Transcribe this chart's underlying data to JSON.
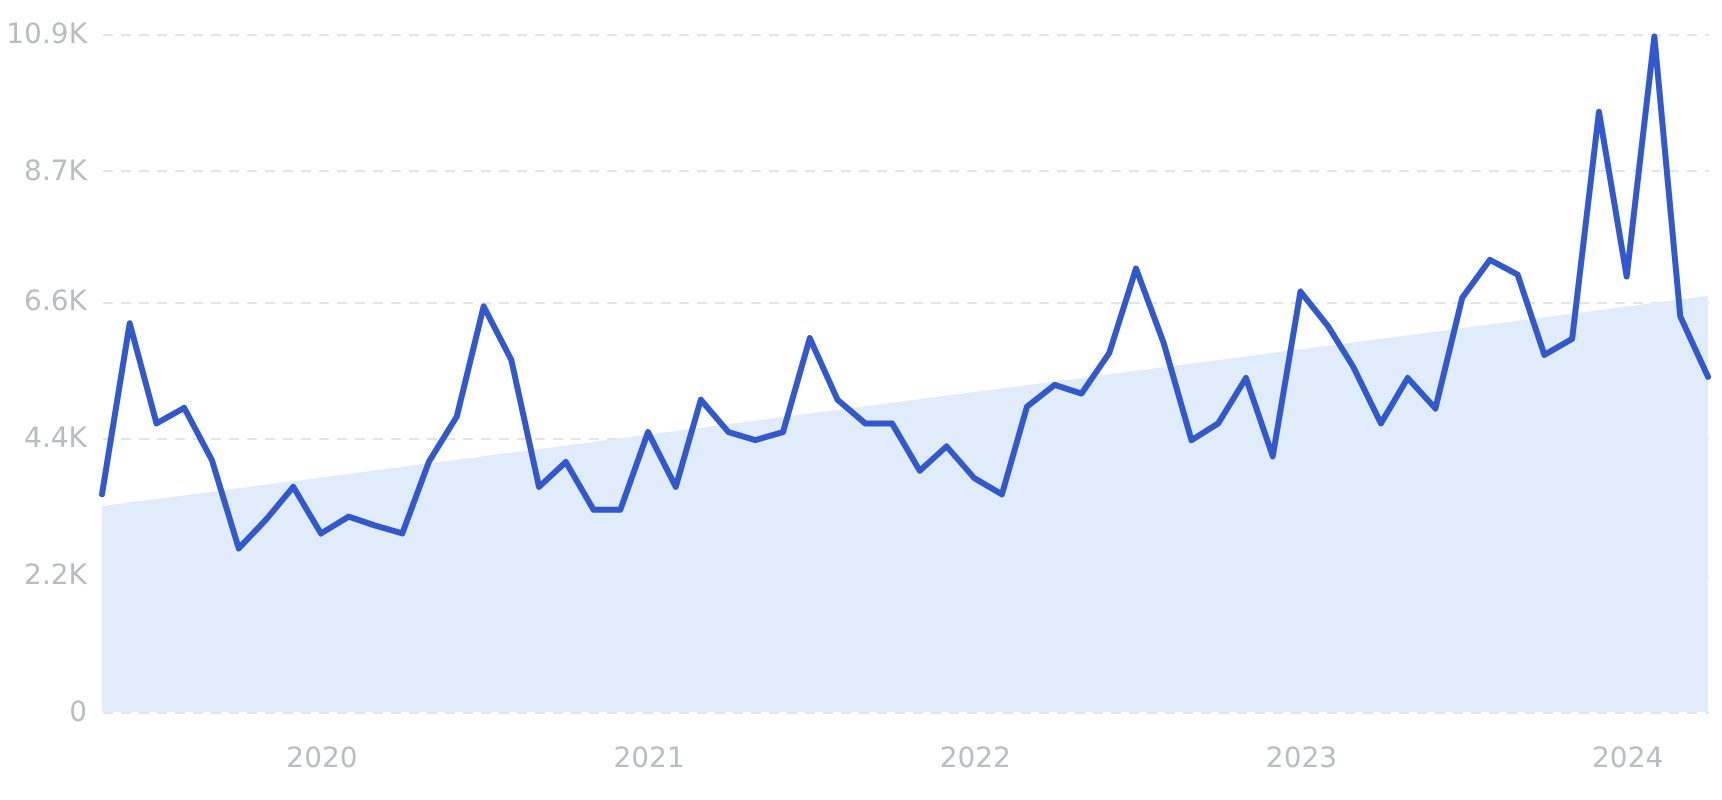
{
  "chart_data": {
    "type": "line",
    "x": [
      "2019-05",
      "2019-06",
      "2019-07",
      "2019-08",
      "2019-09",
      "2019-10",
      "2019-11",
      "2019-12",
      "2020-01",
      "2020-02",
      "2020-03",
      "2020-04",
      "2020-05",
      "2020-06",
      "2020-07",
      "2020-08",
      "2020-09",
      "2020-10",
      "2020-11",
      "2020-12",
      "2021-01",
      "2021-02",
      "2021-03",
      "2021-04",
      "2021-05",
      "2021-06",
      "2021-07",
      "2021-08",
      "2021-09",
      "2021-10",
      "2021-11",
      "2021-12",
      "2022-01",
      "2022-02",
      "2022-03",
      "2022-04",
      "2022-05",
      "2022-06",
      "2022-07",
      "2022-08",
      "2022-09",
      "2022-10",
      "2022-11",
      "2022-12",
      "2023-01",
      "2023-02",
      "2023-03",
      "2023-04",
      "2023-05",
      "2023-06",
      "2023-07",
      "2023-08",
      "2023-09",
      "2023-10",
      "2023-11",
      "2023-12",
      "2024-01",
      "2024-02",
      "2024-03",
      "2024-04"
    ],
    "series": [
      {
        "type": "area",
        "x": [
          "2019-05",
          "2024-04"
        ],
        "color": "#e1ecfb",
        "values": [
          3310,
          6690
        ]
      },
      {
        "color": "#3059d1",
        "values": [
          3500,
          6250,
          4640,
          4890,
          4050,
          2630,
          3100,
          3620,
          2870,
          3140,
          3000,
          2870,
          4030,
          4750,
          6520,
          5660,
          3620,
          4020,
          3250,
          3250,
          4500,
          3620,
          5020,
          4500,
          4370,
          4500,
          6010,
          5020,
          4640,
          4640,
          3880,
          4270,
          3760,
          3500,
          4910,
          5260,
          5120,
          5770,
          7130,
          5930,
          4370,
          4640,
          5370,
          4110,
          6760,
          6200,
          5550,
          4640,
          5370,
          4880,
          6660,
          7270,
          7030,
          5740,
          6000,
          9650,
          7000,
          10860,
          6360,
          5390
        ]
      }
    ],
    "xlim": [
      "2019-05",
      "2024-04"
    ],
    "xticks": [
      "2020",
      "2021",
      "2022",
      "2023",
      "2024"
    ],
    "ylim": [
      0,
      10900
    ],
    "yticks": [
      0,
      {
        "value": 2200,
        "label": "2.2K"
      },
      {
        "value": 4400,
        "label": "4.4K"
      },
      {
        "value": 6600,
        "label": "6.6K"
      },
      {
        "value": 8700,
        "label": "8.7K"
      },
      {
        "value": 10900,
        "label": "10.9K"
      }
    ],
    "grid": "y",
    "line_style": "solid",
    "marker": "none"
  }
}
